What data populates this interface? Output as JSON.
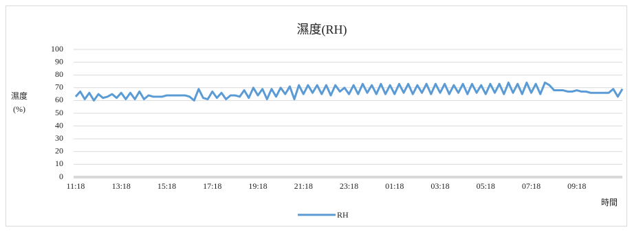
{
  "chart_data": {
    "type": "line",
    "title": "濕度(RH)",
    "ylabel": [
      "濕度",
      "(%)"
    ],
    "xlabel": "時間",
    "categories": [
      "11:18",
      null,
      null,
      null,
      null,
      null,
      null,
      null,
      null,
      null,
      "13:18",
      null,
      null,
      null,
      null,
      null,
      null,
      null,
      null,
      null,
      "15:18",
      null,
      null,
      null,
      null,
      null,
      null,
      null,
      null,
      null,
      "17:18",
      null,
      null,
      null,
      null,
      null,
      null,
      null,
      null,
      null,
      "19:18",
      null,
      null,
      null,
      null,
      null,
      null,
      null,
      null,
      null,
      "21:18",
      null,
      null,
      null,
      null,
      null,
      null,
      null,
      null,
      null,
      "23:18",
      null,
      null,
      null,
      null,
      null,
      null,
      null,
      null,
      null,
      "01:18",
      null,
      null,
      null,
      null,
      null,
      null,
      null,
      null,
      null,
      "03:18",
      null,
      null,
      null,
      null,
      null,
      null,
      null,
      null,
      null,
      "05:18",
      null,
      null,
      null,
      null,
      null,
      null,
      null,
      null,
      null,
      "07:18",
      null,
      null,
      null,
      null,
      null,
      null,
      null,
      null,
      null,
      "09:18",
      null,
      null,
      null,
      null,
      null,
      null,
      null,
      null,
      null,
      null
    ],
    "series": [
      {
        "name": "RH",
        "color": "#5b9bd5",
        "values": [
          63,
          67,
          61,
          66,
          60,
          65,
          62,
          63,
          65,
          62,
          66,
          61,
          66,
          61,
          67,
          61,
          64,
          63,
          63,
          63,
          64,
          64,
          64,
          64,
          64,
          63,
          60,
          69,
          62,
          61,
          67,
          62,
          66,
          61,
          64,
          64,
          63,
          68,
          62,
          70,
          64,
          69,
          61,
          69,
          63,
          70,
          65,
          71,
          61,
          72,
          65,
          72,
          66,
          72,
          65,
          72,
          64,
          72,
          67,
          70,
          65,
          72,
          65,
          73,
          66,
          72,
          65,
          73,
          65,
          72,
          65,
          73,
          66,
          73,
          65,
          72,
          66,
          73,
          65,
          73,
          66,
          73,
          65,
          72,
          66,
          73,
          65,
          73,
          66,
          72,
          65,
          73,
          66,
          73,
          65,
          74,
          66,
          73,
          65,
          74,
          66,
          73,
          65,
          74,
          72,
          68,
          68,
          68,
          67,
          67,
          68,
          67,
          67,
          66,
          66,
          66,
          66,
          66,
          69,
          63,
          69
        ]
      }
    ],
    "ylim": [
      0,
      100
    ],
    "yticks": [
      0,
      10,
      20,
      30,
      40,
      50,
      60,
      70,
      80,
      90,
      100
    ],
    "grid": true,
    "legend": "bottom"
  }
}
